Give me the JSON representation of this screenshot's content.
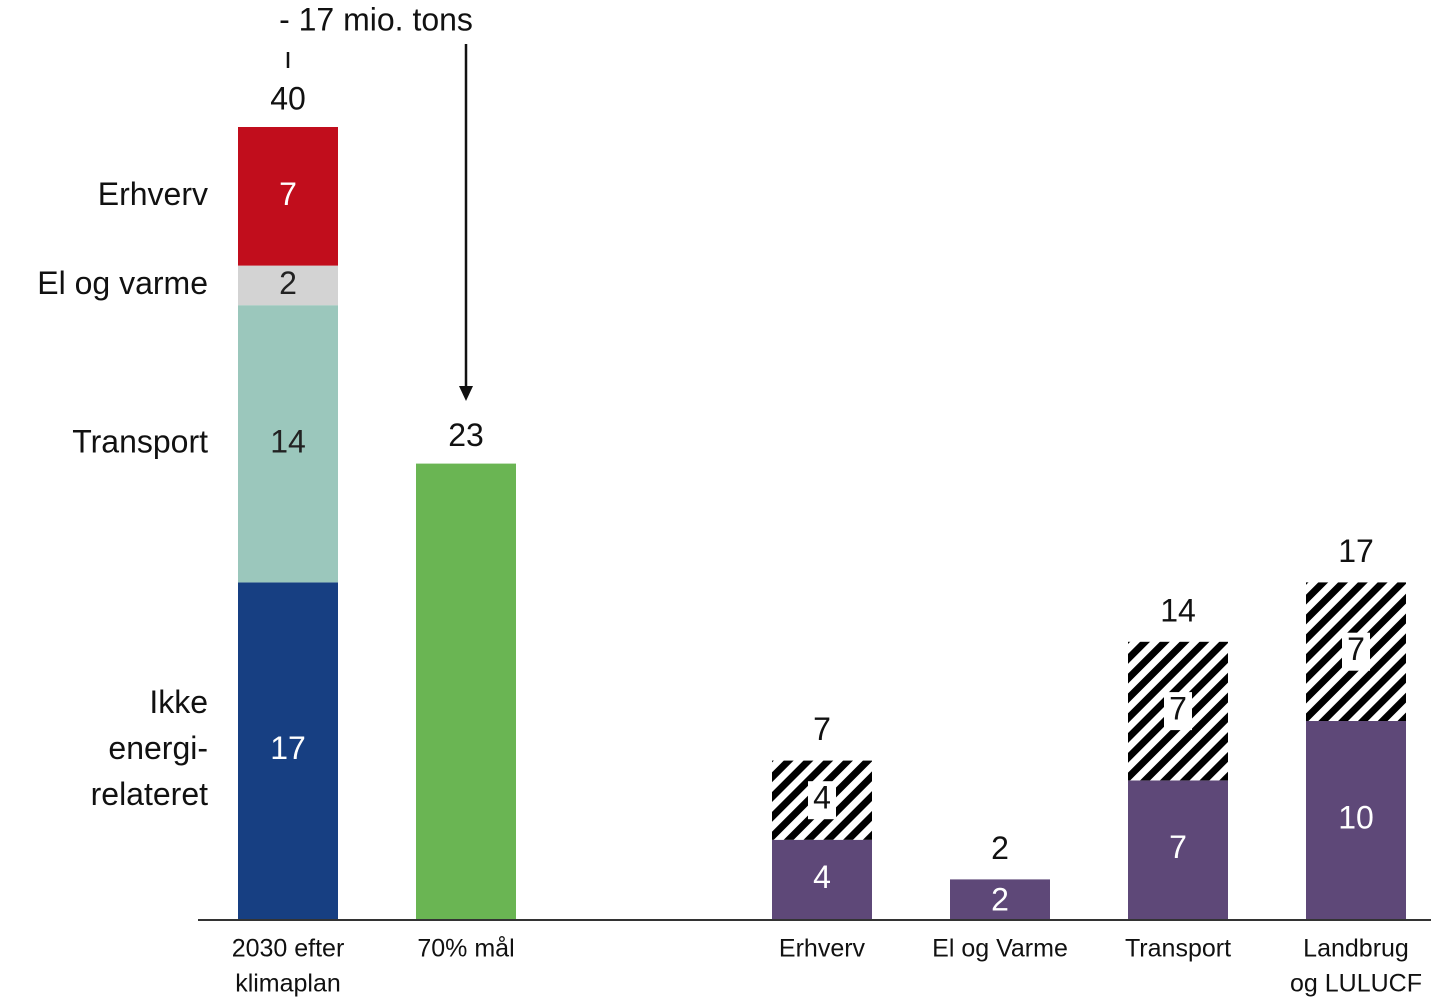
{
  "chart_data": {
    "type": "bar",
    "title": "",
    "xlabel": "",
    "ylabel": "",
    "ylim": [
      0,
      40
    ],
    "grid": false,
    "annotation": {
      "text": "- 17 mio. tons",
      "from_category": "2030 efter klimaplan",
      "to_category": "70% mål"
    },
    "categories": [
      "2030 efter klimaplan",
      "70% mål",
      "Erhverv",
      "El og Varme",
      "Transport",
      "Landbrug og LULUCF"
    ],
    "category_label_lines": [
      [
        "2030 efter",
        "klimaplan"
      ],
      [
        "70% mål"
      ],
      [
        "Erhverv"
      ],
      [
        "El og Varme"
      ],
      [
        "Transport"
      ],
      [
        "Landbrug",
        "og LULUCF"
      ]
    ],
    "totals": [
      40,
      23,
      7,
      2,
      14,
      17
    ],
    "stacked_bar": {
      "category": "2030 efter klimaplan",
      "segments": [
        {
          "label_lines": [
            "Ikke",
            "energi-",
            "relateret"
          ],
          "value": 17,
          "color": "#173f82"
        },
        {
          "label_lines": [
            "Transport"
          ],
          "value": 14,
          "color": "#9bc7bc"
        },
        {
          "label_lines": [
            "El og varme"
          ],
          "value": 2,
          "color": "#d3d3d3"
        },
        {
          "label_lines": [
            "Erhverv"
          ],
          "value": 7,
          "color": "#c10d1c"
        }
      ]
    },
    "target_bar": {
      "category": "70% mål",
      "value": 23,
      "color": "#6ab553"
    },
    "sector_bars": {
      "categories": [
        "Erhverv",
        "El og Varme",
        "Transport",
        "Landbrug og LULUCF"
      ],
      "series": [
        {
          "values": [
            4,
            2,
            7,
            10
          ],
          "color": "#5e4878",
          "style": "solid"
        },
        {
          "values": [
            4,
            0,
            7,
            7
          ],
          "color": "#000000",
          "style": "hatched"
        }
      ]
    }
  }
}
